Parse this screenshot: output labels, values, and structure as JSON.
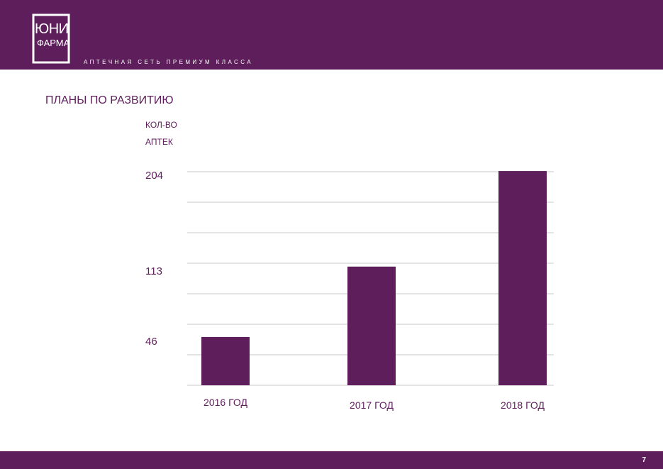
{
  "header": {
    "logo_line1": "ЮНИ",
    "logo_line2": "ФАРМА",
    "tagline": "АПТЕЧНАЯ СЕТЬ ПРЕМИУМ КЛАССА"
  },
  "slide": {
    "title": "ПЛАНЫ ПО РАЗВИТИЮ",
    "page_number": "7"
  },
  "colors": {
    "brand": "#5e1e5b",
    "grid": "#c8c8c8"
  },
  "chart_data": {
    "type": "bar",
    "ylabel_line1": "КОЛ-ВО",
    "ylabel_line2": "АПТЕК",
    "categories": [
      "2016 ГОД",
      "2017 ГОД",
      "2018 ГОД"
    ],
    "values": [
      46,
      113,
      204
    ],
    "ytick_labels": [
      "46",
      "113",
      "204"
    ],
    "grid": true,
    "legend": "none"
  }
}
